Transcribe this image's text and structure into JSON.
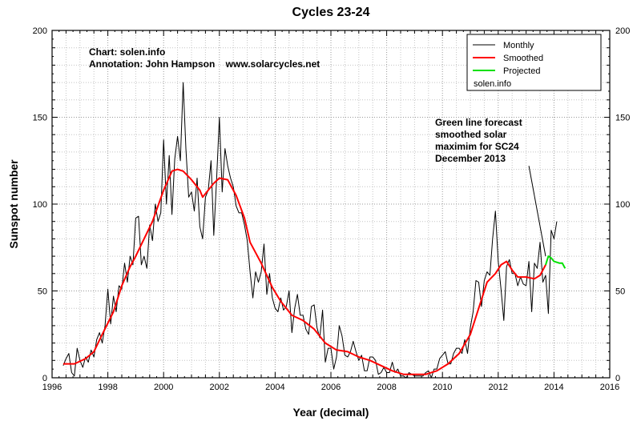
{
  "chart_data": {
    "type": "line",
    "title": "Cycles 23-24",
    "xlabel": "Year (decimal)",
    "ylabel": "Sunspot number",
    "xlim": [
      1996,
      2016
    ],
    "ylim": [
      0,
      200
    ],
    "x_ticks": [
      "1996",
      "1998",
      "2000",
      "2002",
      "2004",
      "2006",
      "2008",
      "2010",
      "2012",
      "2014",
      "2016"
    ],
    "y_ticks": [
      "0",
      "50",
      "100",
      "150",
      "200"
    ],
    "grid": true,
    "legend_position": "top-right",
    "credits": {
      "line1": "Chart: solen.info",
      "line2": "Annotation: John Hampson    www.solarcycles.net"
    },
    "legend": {
      "monthly": "Monthly",
      "smoothed": "Smoothed",
      "projected": "Projected",
      "source": "solen.info"
    },
    "annotation": {
      "lines": [
        "Green line forecast",
        "smoothed solar",
        "maximim for SC24",
        "December 2013"
      ],
      "arrow_from": [
        2013.1,
        122
      ],
      "arrow_to": [
        2013.7,
        70
      ]
    },
    "series": [
      {
        "name": "Monthly",
        "color": "#000000",
        "points": [
          [
            1996.4,
            7
          ],
          [
            1996.5,
            11
          ],
          [
            1996.6,
            14
          ],
          [
            1996.7,
            3
          ],
          [
            1996.8,
            1
          ],
          [
            1996.9,
            17
          ],
          [
            1997.0,
            10
          ],
          [
            1997.1,
            6
          ],
          [
            1997.2,
            12
          ],
          [
            1997.3,
            9
          ],
          [
            1997.4,
            16
          ],
          [
            1997.5,
            12
          ],
          [
            1997.6,
            22
          ],
          [
            1997.7,
            26
          ],
          [
            1997.8,
            20
          ],
          [
            1997.9,
            30
          ],
          [
            1998.0,
            51
          ],
          [
            1998.1,
            31
          ],
          [
            1998.2,
            47
          ],
          [
            1998.3,
            38
          ],
          [
            1998.4,
            53
          ],
          [
            1998.5,
            51
          ],
          [
            1998.6,
            66
          ],
          [
            1998.7,
            55
          ],
          [
            1998.8,
            70
          ],
          [
            1998.9,
            65
          ],
          [
            1999.0,
            92
          ],
          [
            1999.1,
            93
          ],
          [
            1999.2,
            65
          ],
          [
            1999.3,
            70
          ],
          [
            1999.4,
            63
          ],
          [
            1999.5,
            88
          ],
          [
            1999.6,
            79
          ],
          [
            1999.7,
            100
          ],
          [
            1999.8,
            90
          ],
          [
            1999.9,
            95
          ],
          [
            2000.0,
            137
          ],
          [
            2000.1,
            100
          ],
          [
            2000.2,
            128
          ],
          [
            2000.3,
            94
          ],
          [
            2000.4,
            126
          ],
          [
            2000.5,
            139
          ],
          [
            2000.6,
            125
          ],
          [
            2000.7,
            170
          ],
          [
            2000.8,
            132
          ],
          [
            2000.9,
            104
          ],
          [
            2001.0,
            107
          ],
          [
            2001.1,
            96
          ],
          [
            2001.2,
            115
          ],
          [
            2001.3,
            87
          ],
          [
            2001.4,
            80
          ],
          [
            2001.5,
            104
          ],
          [
            2001.6,
            108
          ],
          [
            2001.7,
            125
          ],
          [
            2001.8,
            82
          ],
          [
            2001.9,
            114
          ],
          [
            2002.0,
            150
          ],
          [
            2002.1,
            107
          ],
          [
            2002.2,
            132
          ],
          [
            2002.3,
            122
          ],
          [
            2002.4,
            115
          ],
          [
            2002.5,
            110
          ],
          [
            2002.6,
            99
          ],
          [
            2002.7,
            95
          ],
          [
            2002.8,
            95
          ],
          [
            2002.9,
            88
          ],
          [
            2003.0,
            79
          ],
          [
            2003.1,
            61
          ],
          [
            2003.2,
            46
          ],
          [
            2003.3,
            61
          ],
          [
            2003.4,
            55
          ],
          [
            2003.5,
            61
          ],
          [
            2003.6,
            77
          ],
          [
            2003.7,
            48
          ],
          [
            2003.8,
            60
          ],
          [
            2003.9,
            46
          ],
          [
            2004.0,
            40
          ],
          [
            2004.1,
            38
          ],
          [
            2004.2,
            46
          ],
          [
            2004.3,
            39
          ],
          [
            2004.4,
            41
          ],
          [
            2004.5,
            50
          ],
          [
            2004.6,
            26
          ],
          [
            2004.7,
            40
          ],
          [
            2004.8,
            48
          ],
          [
            2004.9,
            36
          ],
          [
            2005.0,
            36
          ],
          [
            2005.1,
            28
          ],
          [
            2005.2,
            25
          ],
          [
            2005.3,
            41
          ],
          [
            2005.4,
            42
          ],
          [
            2005.5,
            29
          ],
          [
            2005.6,
            23
          ],
          [
            2005.7,
            39
          ],
          [
            2005.8,
            9
          ],
          [
            2005.9,
            17
          ],
          [
            2006.0,
            17
          ],
          [
            2006.1,
            5
          ],
          [
            2006.2,
            12
          ],
          [
            2006.3,
            30
          ],
          [
            2006.4,
            24
          ],
          [
            2006.5,
            13
          ],
          [
            2006.6,
            12
          ],
          [
            2006.7,
            15
          ],
          [
            2006.8,
            21
          ],
          [
            2006.9,
            15
          ],
          [
            2007.0,
            10
          ],
          [
            2007.1,
            13
          ],
          [
            2007.2,
            4
          ],
          [
            2007.3,
            4
          ],
          [
            2007.4,
            12
          ],
          [
            2007.5,
            12
          ],
          [
            2007.6,
            10
          ],
          [
            2007.7,
            2
          ],
          [
            2007.8,
            3
          ],
          [
            2007.9,
            6
          ],
          [
            2008.0,
            3
          ],
          [
            2008.1,
            3
          ],
          [
            2008.2,
            9
          ],
          [
            2008.3,
            3
          ],
          [
            2008.4,
            5
          ],
          [
            2008.5,
            1
          ],
          [
            2008.6,
            1
          ],
          [
            2008.7,
            0
          ],
          [
            2008.8,
            3
          ],
          [
            2008.9,
            2
          ],
          [
            2009.0,
            1
          ],
          [
            2009.1,
            1
          ],
          [
            2009.2,
            1
          ],
          [
            2009.3,
            1
          ],
          [
            2009.4,
            3
          ],
          [
            2009.5,
            4
          ],
          [
            2009.6,
            0
          ],
          [
            2009.7,
            5
          ],
          [
            2009.8,
            5
          ],
          [
            2009.9,
            11
          ],
          [
            2010.0,
            13
          ],
          [
            2010.1,
            15
          ],
          [
            2010.2,
            8
          ],
          [
            2010.3,
            8
          ],
          [
            2010.4,
            14
          ],
          [
            2010.5,
            17
          ],
          [
            2010.6,
            17
          ],
          [
            2010.7,
            14
          ],
          [
            2010.8,
            22
          ],
          [
            2010.9,
            14
          ],
          [
            2011.0,
            29
          ],
          [
            2011.1,
            38
          ],
          [
            2011.2,
            56
          ],
          [
            2011.3,
            55
          ],
          [
            2011.4,
            41
          ],
          [
            2011.5,
            56
          ],
          [
            2011.6,
            61
          ],
          [
            2011.7,
            59
          ],
          [
            2011.8,
            80
          ],
          [
            2011.9,
            96
          ],
          [
            2012.0,
            67
          ],
          [
            2012.1,
            51
          ],
          [
            2012.2,
            33
          ],
          [
            2012.3,
            64
          ],
          [
            2012.4,
            68
          ],
          [
            2012.5,
            60
          ],
          [
            2012.6,
            60
          ],
          [
            2012.7,
            53
          ],
          [
            2012.8,
            58
          ],
          [
            2012.9,
            54
          ],
          [
            2013.0,
            53
          ],
          [
            2013.1,
            67
          ],
          [
            2013.2,
            38
          ],
          [
            2013.3,
            66
          ],
          [
            2013.4,
            63
          ],
          [
            2013.5,
            78
          ],
          [
            2013.6,
            55
          ],
          [
            2013.7,
            59
          ],
          [
            2013.8,
            37
          ],
          [
            2013.9,
            85
          ],
          [
            2014.0,
            80
          ],
          [
            2014.1,
            90
          ]
        ]
      },
      {
        "name": "Smoothed",
        "color": "#ff0000",
        "points": [
          [
            1996.4,
            8
          ],
          [
            1996.8,
            8
          ],
          [
            1997.2,
            11
          ],
          [
            1997.5,
            15
          ],
          [
            1997.8,
            25
          ],
          [
            1998.2,
            38
          ],
          [
            1998.5,
            53
          ],
          [
            1998.8,
            64
          ],
          [
            1999.0,
            70
          ],
          [
            1999.3,
            80
          ],
          [
            1999.6,
            90
          ],
          [
            2000.0,
            108
          ],
          [
            2000.3,
            119
          ],
          [
            2000.5,
            120
          ],
          [
            2000.7,
            119
          ],
          [
            2001.0,
            114
          ],
          [
            2001.3,
            108
          ],
          [
            2001.4,
            104
          ],
          [
            2001.6,
            108
          ],
          [
            2001.8,
            112
          ],
          [
            2002.0,
            115
          ],
          [
            2002.3,
            114
          ],
          [
            2002.6,
            105
          ],
          [
            2002.9,
            92
          ],
          [
            2003.1,
            78
          ],
          [
            2003.5,
            66
          ],
          [
            2003.9,
            52
          ],
          [
            2004.2,
            44
          ],
          [
            2004.6,
            36
          ],
          [
            2005.0,
            33
          ],
          [
            2005.4,
            28
          ],
          [
            2005.8,
            20
          ],
          [
            2006.2,
            16
          ],
          [
            2006.6,
            15
          ],
          [
            2007.0,
            12
          ],
          [
            2007.4,
            10
          ],
          [
            2007.8,
            7
          ],
          [
            2008.2,
            4
          ],
          [
            2008.6,
            2
          ],
          [
            2009.0,
            2
          ],
          [
            2009.4,
            2
          ],
          [
            2009.8,
            4
          ],
          [
            2010.2,
            8
          ],
          [
            2010.6,
            14
          ],
          [
            2011.0,
            25
          ],
          [
            2011.3,
            40
          ],
          [
            2011.6,
            55
          ],
          [
            2011.9,
            60
          ],
          [
            2012.1,
            65
          ],
          [
            2012.3,
            67
          ],
          [
            2012.5,
            62
          ],
          [
            2012.7,
            58
          ],
          [
            2013.0,
            58
          ],
          [
            2013.3,
            57
          ],
          [
            2013.5,
            59
          ],
          [
            2013.7,
            65
          ]
        ]
      },
      {
        "name": "Projected",
        "color": "#00e000",
        "points": [
          [
            2013.7,
            65
          ],
          [
            2013.8,
            70
          ],
          [
            2013.9,
            69
          ],
          [
            2014.0,
            67
          ],
          [
            2014.2,
            66
          ],
          [
            2014.3,
            66
          ],
          [
            2014.4,
            63
          ]
        ]
      }
    ]
  }
}
